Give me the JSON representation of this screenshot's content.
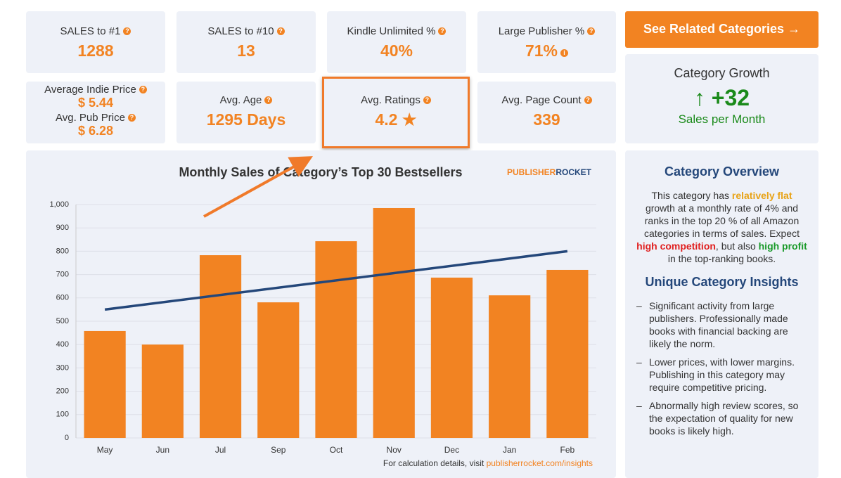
{
  "stats": [
    {
      "label": "SALES to #1",
      "value": "1288"
    },
    {
      "label": "SALES to #10",
      "value": "13"
    },
    {
      "label": "Kindle Unlimited %",
      "value": "40%"
    },
    {
      "label": "Large Publisher %",
      "value": "71%"
    },
    {
      "label": "Average Indie Price",
      "value": "$ 5.44",
      "label2": "Avg. Pub Price",
      "value2": "$ 6.28"
    },
    {
      "label": "Avg. Age",
      "value": "1295 Days"
    },
    {
      "label": "Avg. Ratings",
      "value": "4.2 ★"
    },
    {
      "label": "Avg. Page Count",
      "value": "339"
    }
  ],
  "button": "See Related Categories",
  "growth": {
    "title": "Category Growth",
    "value": "+32",
    "subtitle": "Sales per Month"
  },
  "chart_data": {
    "type": "bar",
    "title": "Monthly Sales of Category’s Top 30 Bestsellers",
    "logo": [
      "PUBLISHER",
      "ROCKET"
    ],
    "categories": [
      "May",
      "Jun",
      "Jul",
      "Sep",
      "Oct",
      "Nov",
      "Dec",
      "Jan",
      "Feb"
    ],
    "values": [
      458,
      400,
      783,
      581,
      843,
      985,
      687,
      611,
      720
    ],
    "color": "#f28322",
    "trend": {
      "color": "#24477a",
      "start": 550,
      "end": 800
    },
    "ylim": [
      0,
      1000
    ],
    "yticks": [
      0,
      100,
      200,
      300,
      400,
      500,
      600,
      700,
      800,
      900,
      {
        "value": 1000,
        "label": "1,000"
      }
    ],
    "grid": true,
    "footer": [
      "For calculation details, visit ",
      "publisherrocket.com/insights"
    ]
  },
  "sidebar": {
    "title": "Category Overview",
    "paragraph": [
      "This category has ",
      "relatively flat",
      " growth at a monthly rate of 4% and ranks in the top 20 % of all Amazon categories in terms of sales. Expect ",
      "high competition",
      ", but also ",
      "high profit",
      " in the top-ranking books."
    ],
    "insights_title": "Unique Category Insights",
    "insights": [
      "Significant activity from large publishers. Professionally made books with financial backing are likely the norm.",
      "Lower prices, with lower margins. Publishing in this category may require competitive pricing.",
      "Abnormally high review scores, so the expectation of quality for new books is likely high."
    ]
  }
}
